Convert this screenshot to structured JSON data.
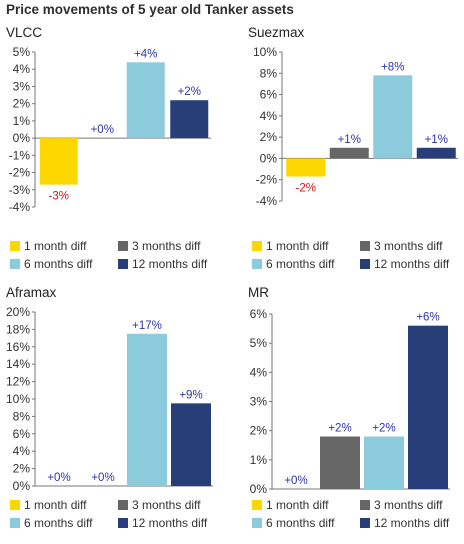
{
  "page": {
    "title": "Price movements of 5 year old Tanker assets"
  },
  "colors": {
    "positive_label": "#2e35a8",
    "negative_label": "#d11a1a",
    "axis": "#777777"
  },
  "chart_data": [
    {
      "type": "bar",
      "title": "VLCC",
      "categories": [
        "1 month diff",
        "3 months diff",
        "6 months diff",
        "12 months diff"
      ],
      "values": [
        -2.7,
        0,
        4.4,
        2.2
      ],
      "value_labels": [
        "-3%",
        "+0%",
        "+4%",
        "+2%"
      ],
      "series_colors": [
        "#ffd700",
        "#666666",
        "#8ccbdc",
        "#283e78"
      ],
      "ylim": [
        -4,
        5
      ],
      "yticks": [
        5,
        4,
        3,
        2,
        1,
        0,
        -1,
        -2,
        -3,
        -4
      ],
      "ytick_labels": [
        "5%",
        "4%",
        "3%",
        "2%",
        "1%",
        "0%",
        "-1%",
        "-2%",
        "-3%",
        "-4%"
      ],
      "grid": false,
      "legend_placement": "bottom"
    },
    {
      "type": "bar",
      "title": "Suezmax",
      "categories": [
        "1 month diff",
        "3 months diff",
        "6 months diff",
        "12 months diff"
      ],
      "values": [
        -1.7,
        1.0,
        7.8,
        1.0
      ],
      "value_labels": [
        "-2%",
        "+1%",
        "+8%",
        "+1%"
      ],
      "series_colors": [
        "#ffd700",
        "#666666",
        "#8ccbdc",
        "#283e78"
      ],
      "ylim": [
        -4,
        10
      ],
      "yticks": [
        10,
        8,
        6,
        4,
        2,
        0,
        -2,
        -4
      ],
      "ytick_labels": [
        "10%",
        "8%",
        "6%",
        "4%",
        "2%",
        "0%",
        "-2%",
        "-4%"
      ],
      "grid": false,
      "legend_placement": "bottom"
    },
    {
      "type": "bar",
      "title": "Aframax",
      "categories": [
        "1 month diff",
        "3 months diff",
        "6 months diff",
        "12 months diff"
      ],
      "values": [
        0,
        0,
        17.5,
        9.5
      ],
      "value_labels": [
        "+0%",
        "+0%",
        "+17%",
        "+9%"
      ],
      "series_colors": [
        "#ffd700",
        "#666666",
        "#8ccbdc",
        "#283e78"
      ],
      "ylim": [
        0,
        20
      ],
      "yticks": [
        20,
        18,
        16,
        14,
        12,
        10,
        8,
        6,
        4,
        2,
        0
      ],
      "ytick_labels": [
        "20%",
        "18%",
        "16%",
        "14%",
        "12%",
        "10%",
        "8%",
        "6%",
        "4%",
        "2%",
        "0%"
      ],
      "grid": false,
      "legend_placement": "bottom"
    },
    {
      "type": "bar",
      "title": "MR",
      "categories": [
        "1 month diff",
        "3 months diff",
        "6 months diff",
        "12 months diff"
      ],
      "values": [
        0,
        1.8,
        1.8,
        5.6
      ],
      "value_labels": [
        "+0%",
        "+2%",
        "+2%",
        "+6%"
      ],
      "series_colors": [
        "#ffd700",
        "#666666",
        "#8ccbdc",
        "#283e78"
      ],
      "ylim": [
        0,
        6
      ],
      "yticks": [
        6,
        5,
        4,
        3,
        2,
        1,
        0
      ],
      "ytick_labels": [
        "6%",
        "5%",
        "4%",
        "3%",
        "2%",
        "1%",
        "0%"
      ],
      "grid": false,
      "legend_placement": "bottom"
    }
  ]
}
